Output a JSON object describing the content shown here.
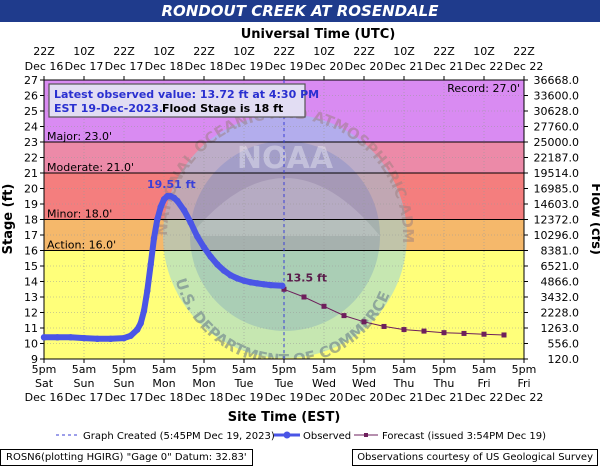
{
  "header": {
    "title": "RONDOUT CREEK AT ROSENDALE"
  },
  "colors": {
    "title_bg": "#1f3b8c",
    "observed": "#4a55e6",
    "forecast": "#6e1f5c",
    "record_band": "#d98bf2",
    "major_band": "#ec8aa8",
    "moderate_band": "#f47e7e",
    "minor_band": "#f5b86b",
    "action_band": "#ffff7a"
  },
  "chart_data": {
    "type": "line",
    "title": "RONDOUT CREEK AT ROSENDALE",
    "top_axis_label": "Universal Time (UTC)",
    "xlabel": "Site Time (EST)",
    "ylabel": "Stage (ft)",
    "y2label": "Flow (cfs)",
    "ylim": [
      9,
      27
    ],
    "y_ticks": [
      9,
      10,
      11,
      12,
      13,
      14,
      15,
      16,
      17,
      18,
      19,
      20,
      21,
      22,
      23,
      24,
      25,
      26,
      27
    ],
    "flow_ticks": [
      "120.0",
      "556.0",
      "1263.0",
      "2228.0",
      "3432.0",
      "4866.0",
      "6521.0",
      "8381.0",
      "10296.0",
      "12372.0",
      "14603.0",
      "16985.0",
      "19514.0",
      "22187.0",
      "25000.0",
      "27760.0",
      "30628.0",
      "33600.0",
      "36668.0"
    ],
    "x_range_hours": [
      0,
      144
    ],
    "bottom_ticks": [
      {
        "h": 0,
        "l1": "5pm",
        "l2": "Sat",
        "l3": "Dec 16"
      },
      {
        "h": 12,
        "l1": "5am",
        "l2": "Sun",
        "l3": "Dec 17"
      },
      {
        "h": 24,
        "l1": "5pm",
        "l2": "Sun",
        "l3": "Dec 17"
      },
      {
        "h": 36,
        "l1": "5am",
        "l2": "Mon",
        "l3": "Dec 18"
      },
      {
        "h": 48,
        "l1": "5pm",
        "l2": "Mon",
        "l3": "Dec 18"
      },
      {
        "h": 60,
        "l1": "5am",
        "l2": "Tue",
        "l3": "Dec 19"
      },
      {
        "h": 72,
        "l1": "5pm",
        "l2": "Tue",
        "l3": "Dec 19"
      },
      {
        "h": 84,
        "l1": "5am",
        "l2": "Wed",
        "l3": "Dec 20"
      },
      {
        "h": 96,
        "l1": "5pm",
        "l2": "Wed",
        "l3": "Dec 20"
      },
      {
        "h": 108,
        "l1": "5am",
        "l2": "Thu",
        "l3": "Dec 21"
      },
      {
        "h": 120,
        "l1": "5pm",
        "l2": "Thu",
        "l3": "Dec 21"
      },
      {
        "h": 132,
        "l1": "5am",
        "l2": "Fri",
        "l3": "Dec 22"
      },
      {
        "h": 144,
        "l1": "5pm",
        "l2": "Fri",
        "l3": "Dec 22"
      }
    ],
    "top_ticks": [
      {
        "h": 0,
        "l1": "22Z",
        "l2": "Dec 16"
      },
      {
        "h": 12,
        "l1": "10Z",
        "l2": "Dec 17"
      },
      {
        "h": 24,
        "l1": "22Z",
        "l2": "Dec 17"
      },
      {
        "h": 36,
        "l1": "10Z",
        "l2": "Dec 18"
      },
      {
        "h": 48,
        "l1": "22Z",
        "l2": "Dec 18"
      },
      {
        "h": 60,
        "l1": "10Z",
        "l2": "Dec 19"
      },
      {
        "h": 72,
        "l1": "22Z",
        "l2": "Dec 19"
      },
      {
        "h": 84,
        "l1": "10Z",
        "l2": "Dec 20"
      },
      {
        "h": 96,
        "l1": "22Z",
        "l2": "Dec 20"
      },
      {
        "h": 108,
        "l1": "10Z",
        "l2": "Dec 21"
      },
      {
        "h": 120,
        "l1": "22Z",
        "l2": "Dec 21"
      },
      {
        "h": 132,
        "l1": "10Z",
        "l2": "Dec 22"
      },
      {
        "h": 144,
        "l1": "22Z",
        "l2": "Dec 22"
      }
    ],
    "flood_categories": [
      {
        "name": "Record",
        "label": "Record: 27.0'",
        "from": 23,
        "to": 27,
        "color": "#d98bf2"
      },
      {
        "name": "Major",
        "label": "Major: 23.0'",
        "from": 21,
        "to": 23,
        "color": "#ec8aa8"
      },
      {
        "name": "Moderate",
        "label": "Moderate: 21.0'",
        "from": 18,
        "to": 21,
        "color": "#f47e7e"
      },
      {
        "name": "Minor",
        "label": "Minor: 18.0'",
        "from": 16,
        "to": 18,
        "color": "#f5b86b"
      },
      {
        "name": "Action",
        "label": "Action: 16.0'",
        "from": 9,
        "to": 16,
        "color": "#ffff7a"
      }
    ],
    "category_lines": [
      23,
      21,
      18,
      16
    ],
    "observed": {
      "name": "Observed",
      "x": [
        0,
        4,
        8,
        12,
        16,
        20,
        24,
        26,
        28,
        29,
        30,
        31,
        32,
        33,
        34,
        35,
        36,
        37,
        38,
        39,
        40,
        42,
        44,
        46,
        48,
        50,
        52,
        54,
        56,
        58,
        60,
        62,
        64,
        66,
        68,
        71.5
      ],
      "y": [
        10.4,
        10.4,
        10.4,
        10.35,
        10.3,
        10.3,
        10.35,
        10.5,
        10.9,
        11.3,
        12.1,
        13.4,
        15.1,
        16.8,
        18.0,
        18.8,
        19.3,
        19.51,
        19.5,
        19.4,
        19.2,
        18.6,
        17.8,
        16.9,
        16.2,
        15.6,
        15.1,
        14.7,
        14.4,
        14.2,
        14.05,
        13.95,
        13.88,
        13.82,
        13.77,
        13.72
      ]
    },
    "forecast": {
      "name": "Forecast",
      "x": [
        72,
        78,
        84,
        90,
        96,
        102,
        108,
        114,
        120,
        126,
        132,
        138
      ],
      "y": [
        13.5,
        13.0,
        12.4,
        11.8,
        11.4,
        11.1,
        10.9,
        10.8,
        10.7,
        10.65,
        10.6,
        10.55
      ]
    },
    "crest_label": "19.51 ft",
    "forecast_start_label": "13.5 ft",
    "graph_created_hour": 72,
    "latest_box": {
      "line1": "Latest observed value: 13.72 ft at 4:30 PM",
      "line2a": "EST 19-Dec-2023.",
      "line2b": "Flood Stage is 18 ft"
    },
    "legend": {
      "created": "Graph Created (5:45PM Dec 19, 2023)",
      "observed": "Observed",
      "forecast": "Forecast (issued 3:54PM Dec 19)"
    },
    "watermark": {
      "initials": "NOAA",
      "ring_top": "NATIONAL OCEANIC AND ATMOSPHERIC ADMINISTRATION",
      "ring_bottom": "U.S. DEPARTMENT OF COMMERCE"
    }
  },
  "footer": {
    "left": "ROSN6(plotting HGIRG) \"Gage 0\" Datum: 32.83'",
    "right": "Observations courtesy of US Geological Survey"
  }
}
